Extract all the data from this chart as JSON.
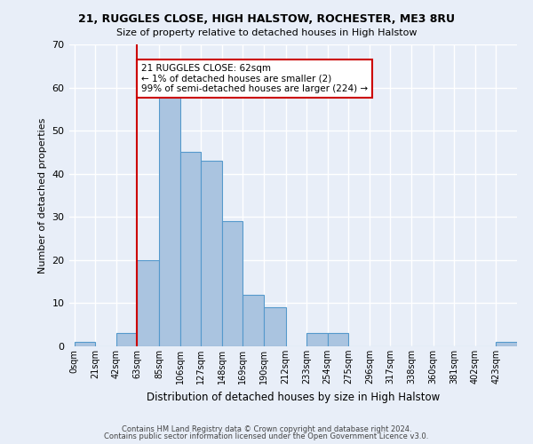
{
  "title_line1": "21, RUGGLES CLOSE, HIGH HALSTOW, ROCHESTER, ME3 8RU",
  "title_line2": "Size of property relative to detached houses in High Halstow",
  "xlabel": "Distribution of detached houses by size in High Halstow",
  "ylabel": "Number of detached properties",
  "bar_color": "#aac4e0",
  "bar_edge_color": "#5599cc",
  "bin_labels": [
    "0sqm",
    "21sqm",
    "42sqm",
    "63sqm",
    "85sqm",
    "106sqm",
    "127sqm",
    "148sqm",
    "169sqm",
    "190sqm",
    "212sqm",
    "233sqm",
    "254sqm",
    "275sqm",
    "296sqm",
    "317sqm",
    "338sqm",
    "360sqm",
    "381sqm",
    "402sqm",
    "423sqm"
  ],
  "bin_edges": [
    0,
    21,
    42,
    63,
    85,
    106,
    127,
    148,
    169,
    190,
    212,
    233,
    254,
    275,
    296,
    317,
    338,
    360,
    381,
    402,
    423
  ],
  "values": [
    1,
    0,
    3,
    20,
    59,
    45,
    43,
    29,
    12,
    9,
    0,
    3,
    3,
    0,
    0,
    0,
    0,
    0,
    0,
    0,
    1
  ],
  "ylim": [
    0,
    70
  ],
  "yticks": [
    0,
    10,
    20,
    30,
    40,
    50,
    60,
    70
  ],
  "vline_x": 63,
  "vline_color": "#cc0000",
  "annotation_text": "21 RUGGLES CLOSE: 62sqm\n← 1% of detached houses are smaller (2)\n99% of semi-detached houses are larger (224) →",
  "annotation_box_color": "#ffffff",
  "annotation_box_edge_color": "#cc0000",
  "footer_line1": "Contains HM Land Registry data © Crown copyright and database right 2024.",
  "footer_line2": "Contains public sector information licensed under the Open Government Licence v3.0.",
  "background_color": "#e8eef8",
  "grid_color": "#ffffff"
}
